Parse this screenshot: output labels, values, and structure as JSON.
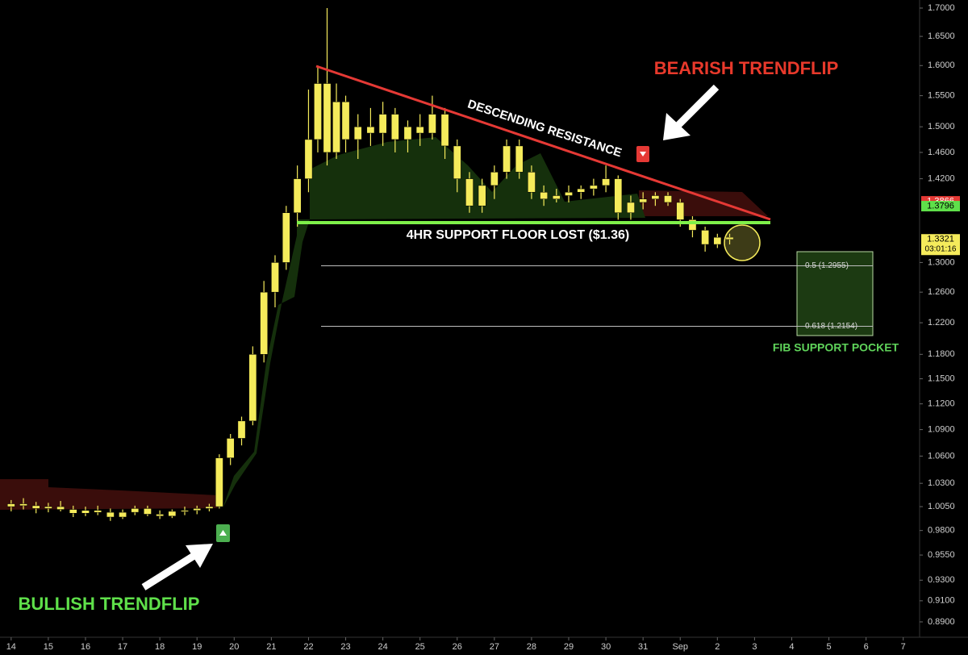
{
  "chart_data": {
    "type": "candlestick",
    "log_scale": true,
    "color": "#f5eb5b",
    "x": [
      0,
      0.33,
      0.67,
      1,
      1.33,
      1.67,
      2,
      2.33,
      2.67,
      3,
      3.33,
      3.67,
      4,
      4.33,
      4.67,
      5,
      5.33,
      5.6,
      5.9,
      6.2,
      6.5,
      6.8,
      7.1,
      7.4,
      7.7,
      8,
      8.25,
      8.5,
      8.75,
      9,
      9.33,
      9.67,
      10,
      10.33,
      10.67,
      11,
      11.33,
      11.67,
      12,
      12.33,
      12.67,
      13,
      13.33,
      13.67,
      14,
      14.33,
      14.67,
      15,
      15.33,
      15.67,
      16,
      16.33,
      16.67,
      17,
      17.33,
      17.67,
      18,
      18.33,
      18.67,
      19,
      19.33
    ],
    "open": [
      1.005,
      1.008,
      1.006,
      1.003,
      1.005,
      1.002,
      0.998,
      1.001,
      0.999,
      0.994,
      0.999,
      1.003,
      0.997,
      0.995,
      1.0,
      1.001,
      1.003,
      1.005,
      1.058,
      1.08,
      1.1,
      1.18,
      1.26,
      1.3,
      1.37,
      1.42,
      1.48,
      1.57,
      1.46,
      1.54,
      1.48,
      1.5,
      1.49,
      1.52,
      1.48,
      1.5,
      1.49,
      1.52,
      1.47,
      1.42,
      1.38,
      1.41,
      1.43,
      1.47,
      1.43,
      1.4,
      1.39,
      1.395,
      1.4,
      1.405,
      1.41,
      1.42,
      1.37,
      1.385,
      1.39,
      1.395,
      1.385,
      1.36,
      1.345,
      1.325,
      1.335
    ],
    "high": [
      1.012,
      1.014,
      1.01,
      1.009,
      1.011,
      1.006,
      1.005,
      1.006,
      1.003,
      1.002,
      1.006,
      1.006,
      1.001,
      1.002,
      1.005,
      1.006,
      1.008,
      1.062,
      1.085,
      1.105,
      1.19,
      1.275,
      1.31,
      1.38,
      1.44,
      1.56,
      1.6,
      1.7,
      1.57,
      1.55,
      1.52,
      1.53,
      1.54,
      1.53,
      1.51,
      1.52,
      1.55,
      1.53,
      1.48,
      1.43,
      1.42,
      1.44,
      1.48,
      1.48,
      1.44,
      1.41,
      1.405,
      1.41,
      1.41,
      1.42,
      1.44,
      1.425,
      1.395,
      1.4,
      1.4,
      1.4,
      1.39,
      1.365,
      1.35,
      1.34,
      1.34
    ],
    "low": [
      1.0,
      1.002,
      0.998,
      0.999,
      1.0,
      0.994,
      0.995,
      0.996,
      0.99,
      0.992,
      0.996,
      0.995,
      0.992,
      0.993,
      0.996,
      0.997,
      1.0,
      1.003,
      1.05,
      1.072,
      1.095,
      1.17,
      1.24,
      1.29,
      1.35,
      1.4,
      1.46,
      1.44,
      1.45,
      1.46,
      1.45,
      1.47,
      1.47,
      1.46,
      1.46,
      1.47,
      1.48,
      1.45,
      1.4,
      1.37,
      1.37,
      1.39,
      1.42,
      1.42,
      1.39,
      1.38,
      1.385,
      1.385,
      1.39,
      1.395,
      1.4,
      1.36,
      1.36,
      1.375,
      1.38,
      1.38,
      1.35,
      1.335,
      1.315,
      1.32,
      1.325
    ],
    "close": [
      1.008,
      1.006,
      1.003,
      1.005,
      1.002,
      0.998,
      1.001,
      0.999,
      0.994,
      0.999,
      1.003,
      0.997,
      0.995,
      1.0,
      1.001,
      1.003,
      1.005,
      1.058,
      1.08,
      1.1,
      1.18,
      1.26,
      1.3,
      1.37,
      1.42,
      1.48,
      1.57,
      1.46,
      1.54,
      1.48,
      1.5,
      1.49,
      1.52,
      1.48,
      1.5,
      1.49,
      1.52,
      1.47,
      1.42,
      1.38,
      1.41,
      1.43,
      1.47,
      1.43,
      1.4,
      1.39,
      1.395,
      1.4,
      1.405,
      1.41,
      1.42,
      1.37,
      1.385,
      1.39,
      1.395,
      1.385,
      1.36,
      1.345,
      1.325,
      1.335,
      1.3321
    ],
    "xlim": [
      -0.3,
      24.44
    ],
    "ylim": [
      0.8757,
      1.7145
    ],
    "xticks": [
      {
        "value": 0,
        "label": "14"
      },
      {
        "value": 1,
        "label": "15"
      },
      {
        "value": 2,
        "label": "16"
      },
      {
        "value": 3,
        "label": "17"
      },
      {
        "value": 4,
        "label": "18"
      },
      {
        "value": 5,
        "label": "19"
      },
      {
        "value": 6,
        "label": "20"
      },
      {
        "value": 7,
        "label": "21"
      },
      {
        "value": 8,
        "label": "22"
      },
      {
        "value": 9,
        "label": "23"
      },
      {
        "value": 10,
        "label": "24"
      },
      {
        "value": 11,
        "label": "25"
      },
      {
        "value": 12,
        "label": "26"
      },
      {
        "value": 13,
        "label": "27"
      },
      {
        "value": 14,
        "label": "28"
      },
      {
        "value": 15,
        "label": "29"
      },
      {
        "value": 16,
        "label": "30"
      },
      {
        "value": 17,
        "label": "31"
      },
      {
        "value": 18,
        "label": "Sep"
      },
      {
        "value": 19,
        "label": "2"
      },
      {
        "value": 20,
        "label": "3"
      },
      {
        "value": 21,
        "label": "4"
      },
      {
        "value": 22,
        "label": "5"
      },
      {
        "value": 23,
        "label": "6"
      },
      {
        "value": 24,
        "label": "7"
      }
    ],
    "yticks": [
      {
        "value": 1.7,
        "label": "1.7000"
      },
      {
        "value": 1.65,
        "label": "1.6500"
      },
      {
        "value": 1.6,
        "label": "1.6000"
      },
      {
        "value": 1.55,
        "label": "1.5500"
      },
      {
        "value": 1.5,
        "label": "1.5000"
      },
      {
        "value": 1.46,
        "label": "1.4600"
      },
      {
        "value": 1.42,
        "label": "1.4200"
      },
      {
        "value": 1.3,
        "label": "1.3000"
      },
      {
        "value": 1.26,
        "label": "1.2600"
      },
      {
        "value": 1.22,
        "label": "1.2200"
      },
      {
        "value": 1.18,
        "label": "1.1800"
      },
      {
        "value": 1.15,
        "label": "1.1500"
      },
      {
        "value": 1.12,
        "label": "1.1200"
      },
      {
        "value": 1.09,
        "label": "1.0900"
      },
      {
        "value": 1.06,
        "label": "1.0600"
      },
      {
        "value": 1.03,
        "label": "1.0300"
      },
      {
        "value": 1.005,
        "label": "1.0050"
      },
      {
        "value": 0.98,
        "label": "0.9800"
      },
      {
        "value": 0.955,
        "label": "0.9550"
      },
      {
        "value": 0.93,
        "label": "0.9300"
      },
      {
        "value": 0.91,
        "label": "0.9100"
      },
      {
        "value": 0.89,
        "label": "0.8900"
      }
    ],
    "fib_levels": [
      {
        "price": 1.2955,
        "label": "0.5 (1.2955)"
      },
      {
        "price": 1.2154,
        "label": "0.618 (1.2154)"
      }
    ],
    "price_tags": [
      {
        "value": 1.3866,
        "color": "#e53935"
      },
      {
        "value": 1.3796,
        "color": "#5fe04a"
      },
      {
        "value": 1.3321,
        "color": "#f5eb5b",
        "countdown": "03:01:16"
      }
    ],
    "annotations": {
      "bearish": "BEARISH TRENDFLIP",
      "resistance": "DESCENDING RESISTANCE",
      "support": "4HR SUPPORT FLOOR LOST ($1.36)",
      "pocket": "FIB SUPPORT POCKET",
      "bullish": "BULLISH TRENDFLIP"
    }
  }
}
